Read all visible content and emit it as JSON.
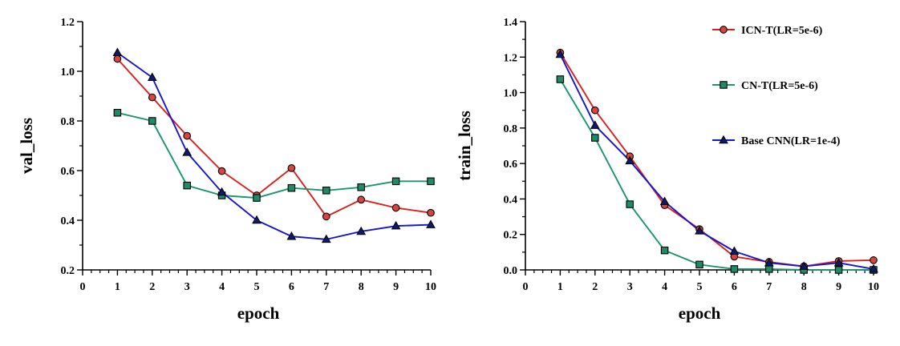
{
  "chart_data": [
    {
      "type": "line",
      "title": "",
      "xlabel": "epoch",
      "ylabel": "val_loss",
      "xlim": [
        0,
        10
      ],
      "ylim": [
        0.2,
        1.2
      ],
      "xticks": [
        "0",
        "1",
        "2",
        "3",
        "4",
        "5",
        "6",
        "7",
        "8",
        "9",
        "10"
      ],
      "yticks": [
        "0.2",
        "0.4",
        "0.6",
        "0.8",
        "1.0",
        "1.2"
      ],
      "x": [
        1,
        2,
        3,
        4,
        5,
        6,
        7,
        8,
        9,
        10
      ],
      "series": [
        {
          "name": "ICN-T(LR=5e-6)",
          "values": [
            1.05,
            0.895,
            0.74,
            0.598,
            0.5,
            0.61,
            0.415,
            0.483,
            0.45,
            0.43
          ]
        },
        {
          "name": "CN-T(LR=5e-6)",
          "values": [
            0.833,
            0.8,
            0.54,
            0.5,
            0.49,
            0.53,
            0.52,
            0.533,
            0.557,
            0.557
          ]
        },
        {
          "name": "Base CNN(LR=1e-4)",
          "values": [
            1.075,
            0.975,
            0.673,
            0.513,
            0.4,
            0.335,
            0.323,
            0.355,
            0.377,
            0.382
          ]
        }
      ]
    },
    {
      "type": "line",
      "title": "",
      "xlabel": "epoch",
      "ylabel": "train_loss",
      "xlim": [
        0,
        10
      ],
      "ylim": [
        0,
        1.4
      ],
      "xticks": [
        "0",
        "1",
        "2",
        "3",
        "4",
        "5",
        "6",
        "7",
        "8",
        "9",
        "10"
      ],
      "yticks": [
        "0.0",
        "0.2",
        "0.4",
        "0.6",
        "0.8",
        "1.0",
        "1.2",
        "1.4"
      ],
      "x": [
        1,
        2,
        3,
        4,
        5,
        6,
        7,
        8,
        9,
        10
      ],
      "series": [
        {
          "name": "ICN-T(LR=5e-6)",
          "values": [
            1.225,
            0.9,
            0.64,
            0.365,
            0.23,
            0.075,
            0.045,
            0.02,
            0.05,
            0.055
          ]
        },
        {
          "name": "CN-T(LR=5e-6)",
          "values": [
            1.075,
            0.745,
            0.37,
            0.11,
            0.03,
            0.005,
            0.005,
            0.0,
            0.0,
            0.0
          ]
        },
        {
          "name": "Base CNN(LR=1e-4)",
          "values": [
            1.215,
            0.815,
            0.615,
            0.385,
            0.22,
            0.105,
            0.04,
            0.02,
            0.04,
            0.005
          ]
        }
      ]
    }
  ],
  "legend": {
    "position": "top-right",
    "items": [
      {
        "label": "ICN-T(LR=5e-6)",
        "color": "#d92020",
        "marker": "circle"
      },
      {
        "label": "CN-T(LR=5e-6)",
        "color": "#1b9570",
        "marker": "square"
      },
      {
        "label": "Base CNN(LR=1e-4)",
        "color": "#1515d0",
        "marker": "triangle"
      }
    ]
  },
  "colors": {
    "marker_fill_0": "#d64541",
    "marker_fill_1": "#1f8a66",
    "marker_fill_2": "#0f1a6e",
    "axis": "#000000"
  }
}
